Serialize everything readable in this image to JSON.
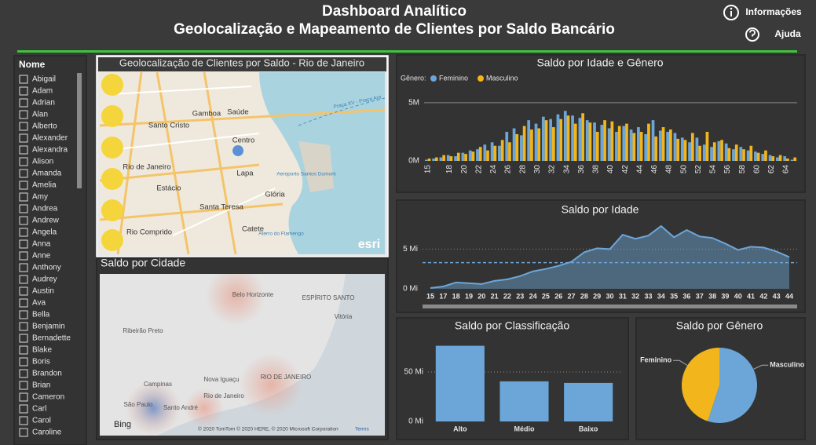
{
  "header": {
    "title": "Dashboard Analítico",
    "subtitle": "Geolocalização e Mapeamento de Clientes por Saldo Bancário",
    "info": "Informações",
    "help": "Ajuda"
  },
  "slicer": {
    "title": "Nome",
    "items": [
      "Abigail",
      "Adam",
      "Adrian",
      "Alan",
      "Alberto",
      "Alexander",
      "Alexandra",
      "Alison",
      "Amanda",
      "Amelia",
      "Amy",
      "Andrea",
      "Andrew",
      "Angela",
      "Anna",
      "Anne",
      "Anthony",
      "Audrey",
      "Austin",
      "Ava",
      "Bella",
      "Benjamin",
      "Bernadette",
      "Blake",
      "Boris",
      "Brandon",
      "Brian",
      "Cameron",
      "Carl",
      "Carol",
      "Caroline"
    ]
  },
  "maps": [
    {
      "title": "Geolocalização de Clientes por Saldo - Rio de Janeiro",
      "labels": [
        "Gamboa",
        "Saúde",
        "Santo Cristo",
        "Centro",
        "Rio de Janeiro",
        "Lapa",
        "Estácio",
        "Glória",
        "Santa Teresa",
        "Rio Comprido",
        "Catete",
        "Aeroporto Santos Dumont",
        "Praça XV - Praça Ara",
        "Aterro do Flamengo"
      ],
      "credit": "esri"
    },
    {
      "title": "Saldo por Cidade",
      "labels": [
        "Belo Horizonte",
        "ESPÍRITO SANTO",
        "Vitória",
        "Ribeirão Preto",
        "RIO DE JANEIRO",
        "Campinas",
        "Nova Iguaçu",
        "Rio de Janeiro",
        "São Paulo",
        "Santo André"
      ],
      "brand": "Bing",
      "credit": "© 2020 TomTom © 2020 HERE, © 2020 Microsoft Corporation",
      "terms": "Terms"
    }
  ],
  "chart_data": [
    {
      "type": "grouped-bar",
      "title": "Saldo por Idade e Gênero",
      "legend_title": "Gênero:",
      "categories": [
        "15",
        null,
        null,
        "18",
        null,
        "20",
        null,
        "22",
        null,
        "24",
        null,
        "26",
        null,
        "28",
        null,
        "30",
        null,
        "32",
        null,
        "34",
        null,
        "36",
        null,
        "38",
        null,
        "40",
        null,
        "42",
        null,
        "44",
        null,
        "46",
        null,
        "48",
        null,
        "50",
        null,
        "52",
        null,
        "54",
        null,
        "56",
        null,
        "58",
        null,
        "60",
        null,
        "62",
        null,
        "64",
        null
      ],
      "series": [
        {
          "name": "Feminino",
          "color": "#6ca6d8",
          "values": [
            0.1,
            0.2,
            0.3,
            0.5,
            0.4,
            0.7,
            0.9,
            1.0,
            1.4,
            1.6,
            1.3,
            2.5,
            2.8,
            2.2,
            3.5,
            3.2,
            3.8,
            3.6,
            4.0,
            4.3,
            3.9,
            3.7,
            3.5,
            3.3,
            3.1,
            2.8,
            2.5,
            3.0,
            2.7,
            2.9,
            2.3,
            3.5,
            2.6,
            2.5,
            2.4,
            2.0,
            1.6,
            2.0,
            1.4,
            1.2,
            1.7,
            1.5,
            1.0,
            1.2,
            0.9,
            0.8,
            0.6,
            0.5,
            0.3,
            0.4,
            0.1
          ]
        },
        {
          "name": "Masculino",
          "color": "#f2b51c",
          "values": [
            0.2,
            0.3,
            0.5,
            0.4,
            0.7,
            0.6,
            0.8,
            1.2,
            0.9,
            1.3,
            1.8,
            1.6,
            2.3,
            3.0,
            2.7,
            2.8,
            3.5,
            2.9,
            3.6,
            3.9,
            3.2,
            4.1,
            3.3,
            2.5,
            3.5,
            3.4,
            3.0,
            3.2,
            2.4,
            2.5,
            3.2,
            2.1,
            2.9,
            2.7,
            1.9,
            1.8,
            2.4,
            1.3,
            2.5,
            1.6,
            1.8,
            1.1,
            1.4,
            1.0,
            1.3,
            0.7,
            0.9,
            0.4,
            0.5,
            0.2,
            0.3
          ]
        }
      ],
      "ylim": [
        0,
        5.4
      ],
      "yticks": [
        {
          "value": 0,
          "label": "0M"
        },
        {
          "value": 5,
          "label": "5M"
        }
      ],
      "grid": true
    },
    {
      "type": "area",
      "title": "Saldo por Idade",
      "color": "#6ca6d8",
      "categories": [
        "15",
        "17",
        "18",
        "19",
        "20",
        "21",
        "22",
        "23",
        "24",
        "25",
        "26",
        "27",
        "28",
        "29",
        "30",
        "31",
        "32",
        "33",
        "34",
        "35",
        "36",
        "37",
        "38",
        "39",
        "40",
        "41",
        "42",
        "43",
        "44"
      ],
      "values": [
        0.1,
        0.3,
        0.8,
        0.7,
        0.6,
        1.0,
        1.2,
        1.6,
        2.2,
        2.5,
        2.9,
        3.4,
        4.6,
        5.1,
        5.0,
        6.8,
        6.3,
        6.7,
        7.9,
        6.5,
        7.4,
        6.6,
        6.4,
        5.7,
        4.9,
        5.3,
        5.2,
        4.7,
        4.0
      ],
      "reference_line": 3.3,
      "ylim": [
        0,
        8.5
      ],
      "yticks": [
        {
          "value": 0,
          "label": "0 Mi"
        },
        {
          "value": 5,
          "label": "5 Mi"
        }
      ],
      "grid": true
    },
    {
      "type": "bar",
      "title": "Saldo por Classificação",
      "color": "#6ca6d8",
      "categories": [
        "Alto",
        "Médio",
        "Baixo"
      ],
      "values": [
        76.6,
        40.6,
        39.0
      ],
      "ylim": [
        0,
        85
      ],
      "yticks": [
        {
          "value": 0,
          "label": "0 Mi"
        },
        {
          "value": 50,
          "label": "50 Mi"
        }
      ],
      "grid": true
    },
    {
      "type": "pie",
      "title": "Saldo por Gênero",
      "categories": [
        "Feminino",
        "Masculino"
      ],
      "values": [
        45,
        55
      ],
      "colors": [
        "#f2b51c",
        "#6ca6d8"
      ]
    }
  ]
}
